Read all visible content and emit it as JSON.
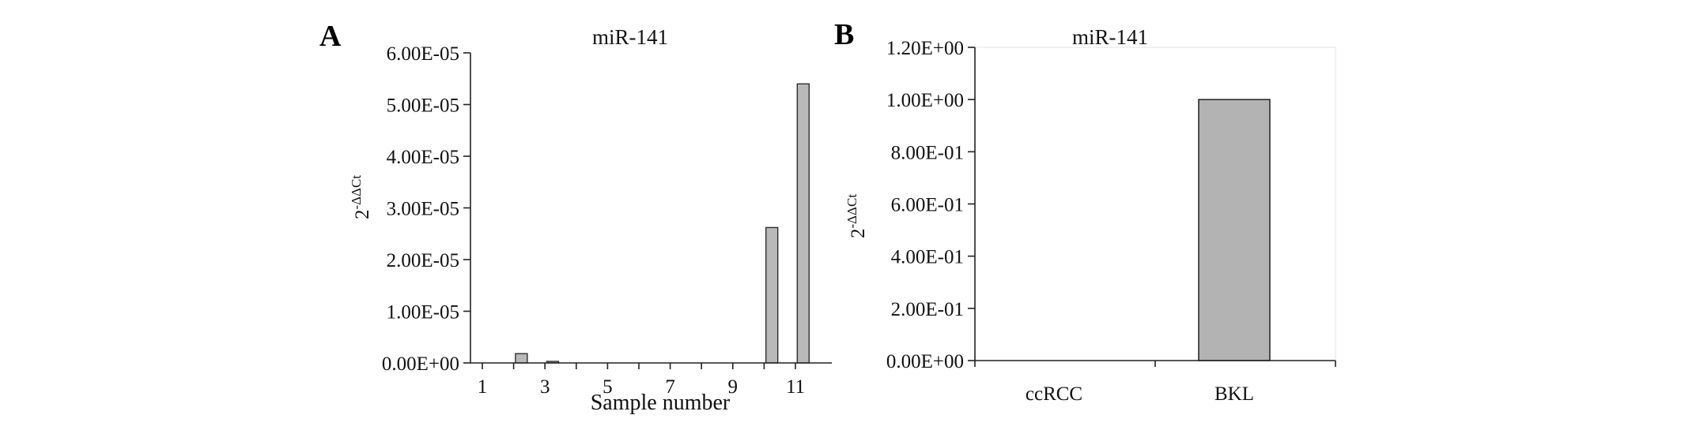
{
  "charts": [
    {
      "panel": "A",
      "chart_data": {
        "type": "bar",
        "title": "miR-141",
        "xlabel": "Sample number",
        "ylabel": "2-ΔΔCt",
        "ylabel_base": "2",
        "ylabel_exp": "-ΔΔCt",
        "categories": [
          "1",
          "2",
          "3",
          "4",
          "5",
          "6",
          "7",
          "8",
          "9",
          "10",
          "11"
        ],
        "x_tick_labels": [
          "1",
          "3",
          "5",
          "7",
          "9",
          "11"
        ],
        "values": [
          0,
          1.8e-06,
          3e-07,
          0,
          0,
          0,
          0,
          0,
          0,
          2.62e-05,
          5.4e-05
        ],
        "ylim": [
          0,
          6e-05
        ],
        "y_ticks": [
          0,
          1e-05,
          2e-05,
          3e-05,
          4e-05,
          5e-05,
          6e-05
        ],
        "y_tick_labels": [
          "0.00E+00",
          "1.00E-05",
          "2.00E-05",
          "3.00E-05",
          "4.00E-05",
          "5.00E-05",
          "6.00E-05"
        ],
        "bar_color": "#b9b9b9",
        "grid": false
      }
    },
    {
      "panel": "B",
      "chart_data": {
        "type": "bar",
        "title": "miR-141",
        "xlabel": "",
        "ylabel": "2-ΔΔCt",
        "ylabel_base": "2",
        "ylabel_exp": "-ΔΔCt",
        "categories": [
          "ccRCC",
          "BKL"
        ],
        "values": [
          0,
          1.0
        ],
        "ylim": [
          0,
          1.2
        ],
        "y_ticks": [
          0,
          0.2,
          0.4,
          0.6,
          0.8,
          1.0,
          1.2
        ],
        "y_tick_labels": [
          "0.00E+00",
          "2.00E-01",
          "4.00E-01",
          "6.00E-01",
          "8.00E-01",
          "1.00E+00",
          "1.20E+00"
        ],
        "bar_color": "#b3b3b3",
        "grid": false
      }
    }
  ]
}
